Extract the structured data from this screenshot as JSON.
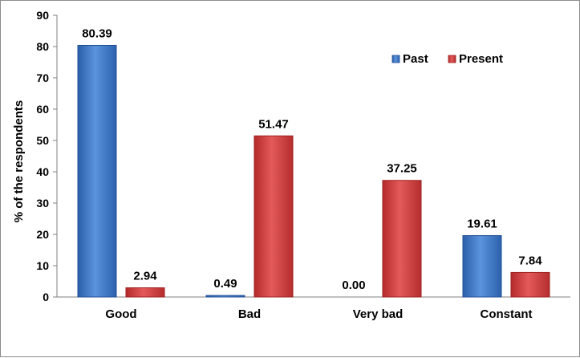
{
  "chart_data": {
    "type": "bar",
    "title": "",
    "xlabel": "",
    "ylabel": "% of the respondents",
    "ylim": [
      0,
      90
    ],
    "yticks": [
      0,
      10,
      20,
      30,
      40,
      50,
      60,
      70,
      80,
      90
    ],
    "categories": [
      "Good",
      "Bad",
      "Very bad",
      "Constant"
    ],
    "series": [
      {
        "name": "Past",
        "color": "#3a74c7",
        "values": [
          80.39,
          0.49,
          0.0,
          19.61
        ],
        "labels": [
          "80.39",
          "0.49",
          "0.00",
          "19.61"
        ]
      },
      {
        "name": "Present",
        "color": "#d23b3b",
        "values": [
          2.94,
          51.47,
          37.25,
          7.84
        ],
        "labels": [
          "2.94",
          "51.47",
          "37.25",
          "7.84"
        ]
      }
    ],
    "legend_position": "top-right",
    "grid": false
  }
}
